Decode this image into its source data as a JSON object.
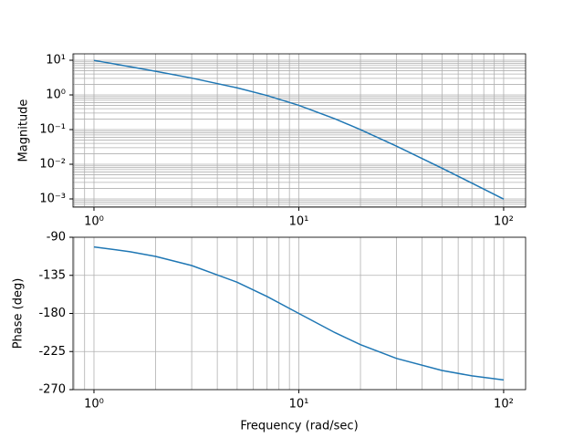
{
  "chart_data": [
    {
      "type": "line",
      "ylabel": "Magnitude",
      "log_x": true,
      "log_y": true,
      "grid": true,
      "color": "#1f77b4",
      "x": [
        1,
        1.5,
        2,
        3,
        5,
        7,
        10,
        15,
        20,
        30,
        50,
        70,
        100
      ],
      "values": [
        9.901,
        6.52,
        4.808,
        3.058,
        1.6,
        0.9588,
        0.5,
        0.2051,
        0.1,
        0.03333,
        0.007692,
        0.002857,
        0.00099
      ],
      "xlim": [
        0.79,
        128
      ],
      "xticks": [
        {
          "value": 1,
          "label": "10⁰"
        },
        {
          "value": 10,
          "label": "10¹"
        },
        {
          "value": 100,
          "label": "10²"
        }
      ],
      "ylim": [
        0.00058,
        15.3
      ],
      "yticks": [
        {
          "value": 0.001,
          "label": "10⁻³"
        },
        {
          "value": 0.01,
          "label": "10⁻²"
        },
        {
          "value": 0.1,
          "label": "10⁻¹"
        },
        {
          "value": 1,
          "label": "10⁰"
        },
        {
          "value": 10,
          "label": "10¹"
        }
      ]
    },
    {
      "type": "line",
      "ylabel": "Phase (deg)",
      "xlabel": "Frequency (rad/sec)",
      "log_x": true,
      "log_y": false,
      "grid": true,
      "color": "#1f77b4",
      "x": [
        1,
        1.5,
        2,
        3,
        5,
        7,
        10,
        15,
        20,
        30,
        50,
        70,
        100
      ],
      "values": [
        -101.42,
        -107.06,
        -112.62,
        -123.4,
        -143.13,
        -159.98,
        -180,
        -202.62,
        -216.87,
        -233.13,
        -247.38,
        -253.74,
        -258.58
      ],
      "xlim": [
        0.79,
        128
      ],
      "xticks": [
        {
          "value": 1,
          "label": "10⁰"
        },
        {
          "value": 10,
          "label": "10¹"
        },
        {
          "value": 100,
          "label": "10²"
        }
      ],
      "ylim": [
        -270,
        -90
      ],
      "yticks": [
        -270,
        -225,
        -180,
        -135,
        -90
      ]
    }
  ]
}
